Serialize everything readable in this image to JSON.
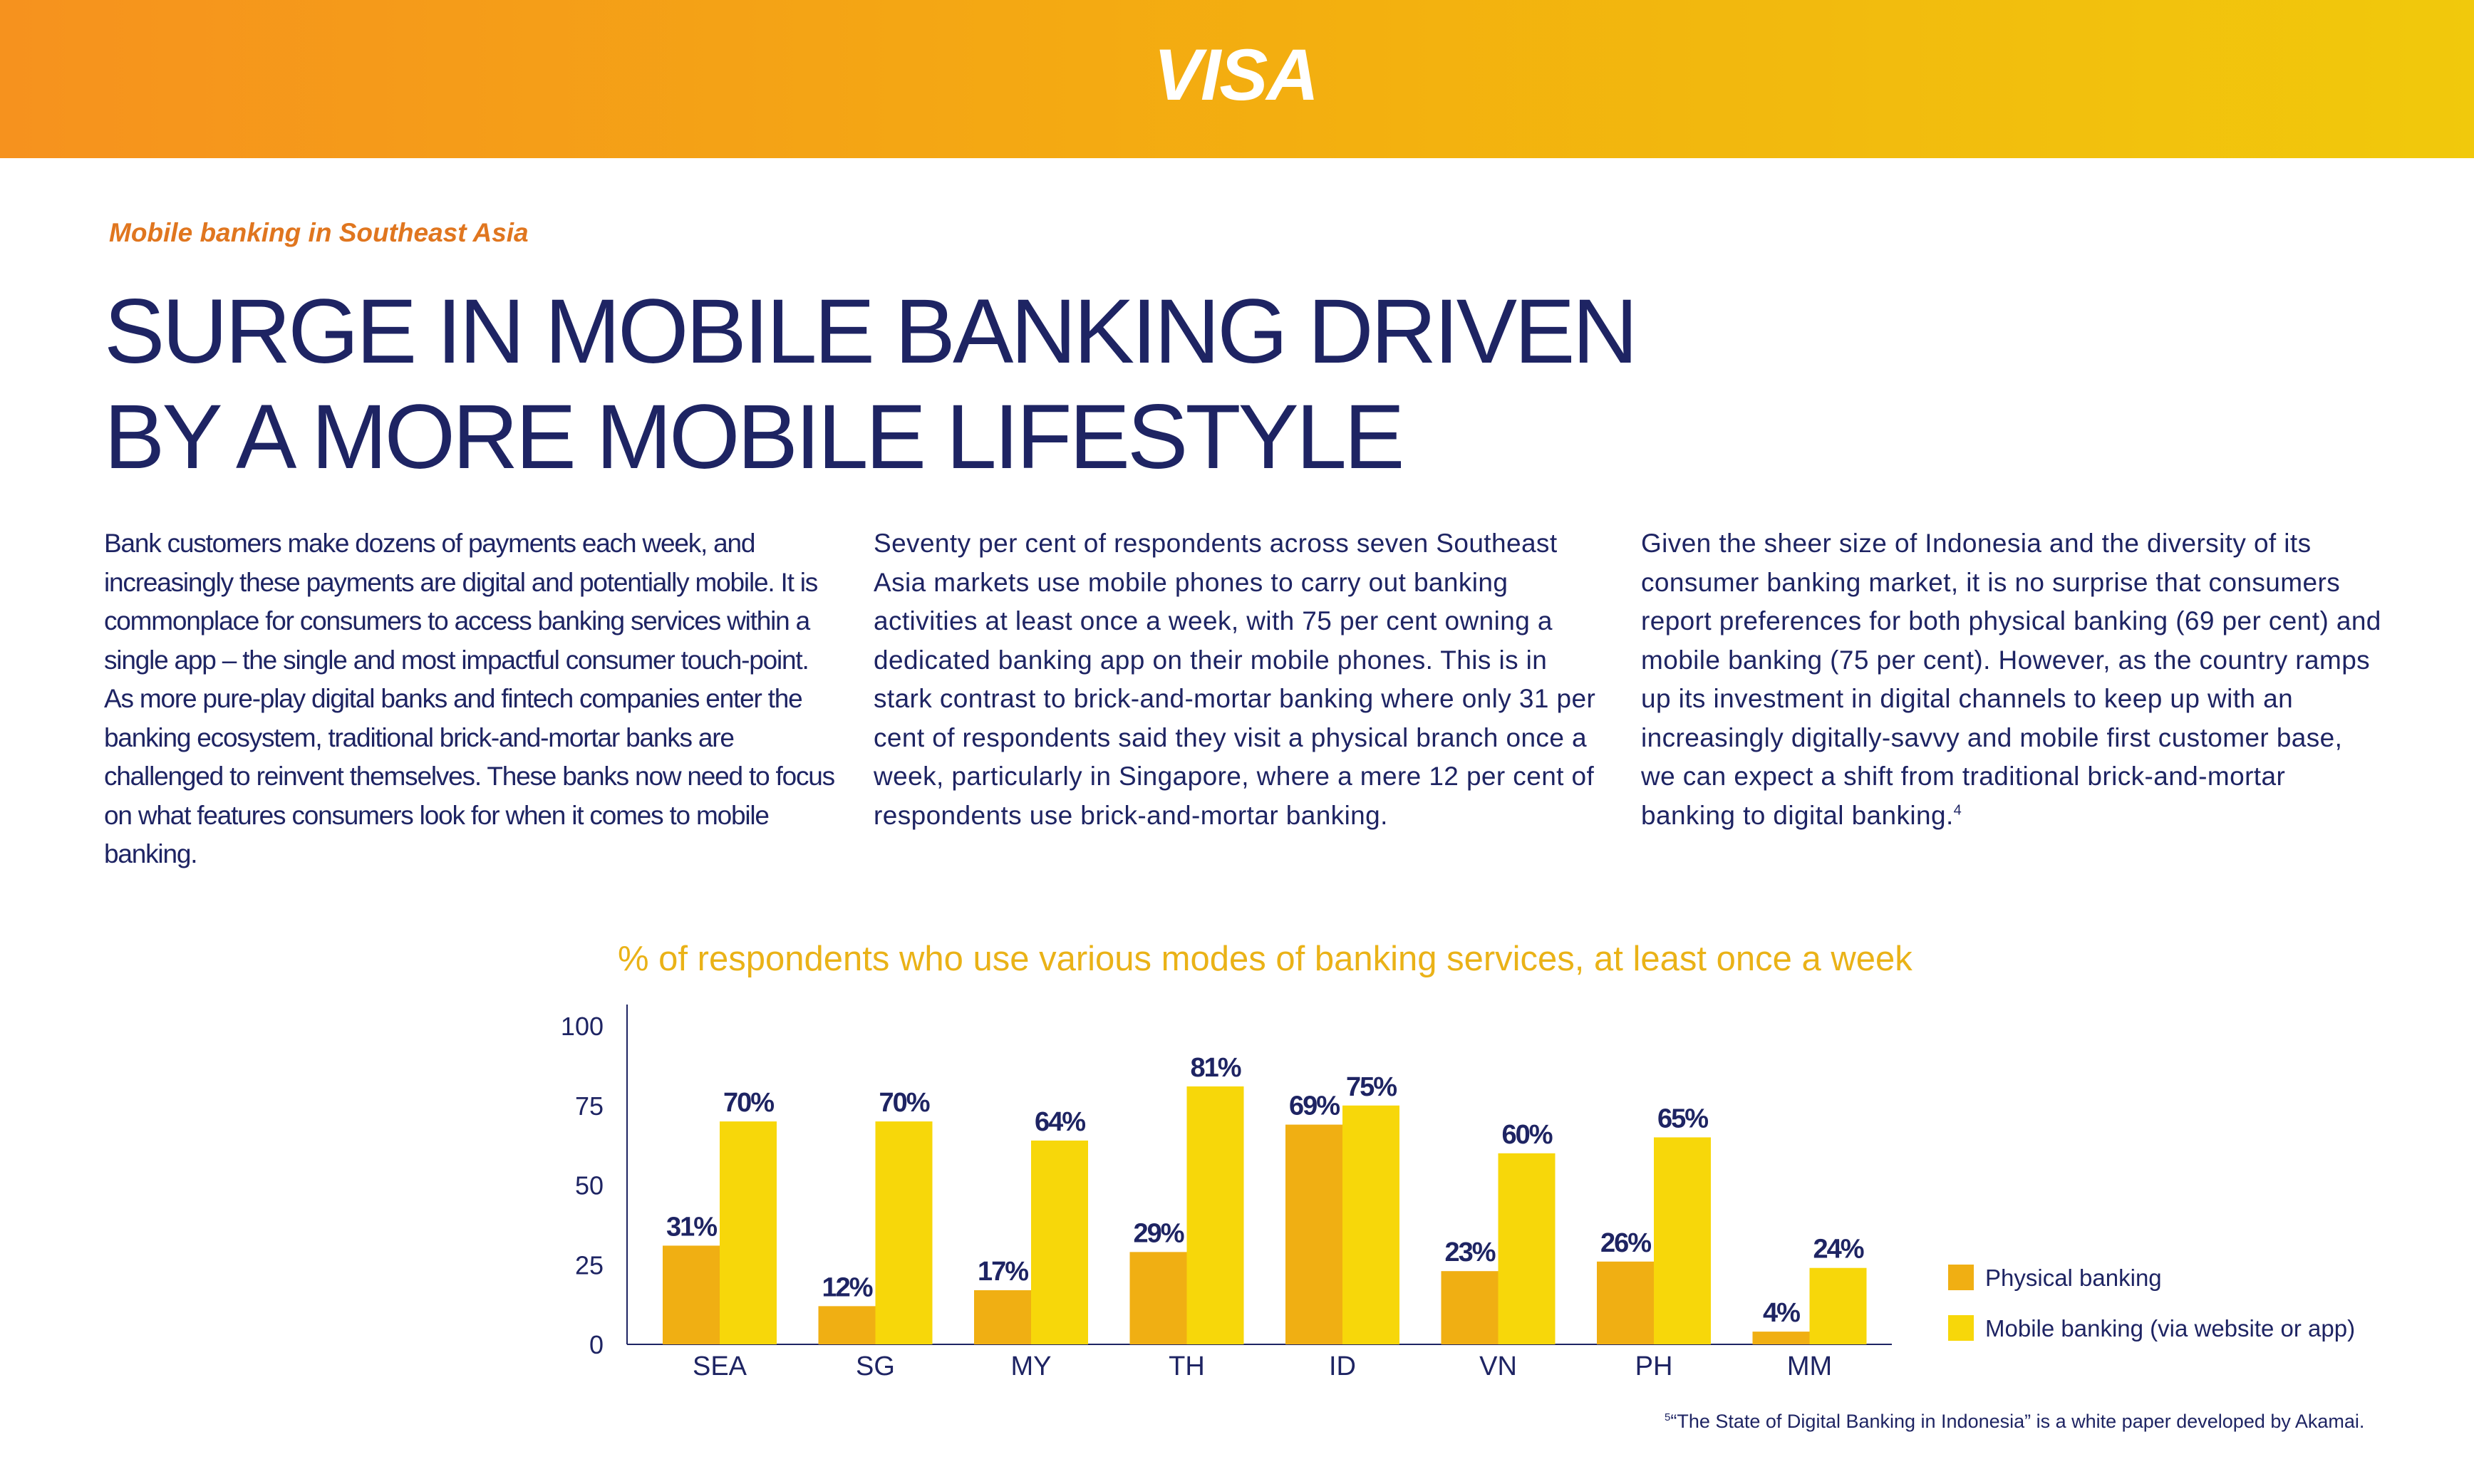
{
  "brand": {
    "logo_text": "VISA"
  },
  "kicker": "Mobile banking in Southeast Asia",
  "headline": {
    "line1": "SURGE IN MOBILE BANKING DRIVEN",
    "line2": "BY A MORE MOBILE LIFESTYLE"
  },
  "columns": [
    "Bank customers make dozens of payments each week, and increasingly these payments are digital and potentially mobile. It is commonplace for consumers to access banking services within a single app – the single and most impactful consumer touch-point. As more pure-play digital banks and fintech companies enter the banking ecosystem, traditional brick-and-mortar banks are challenged to reinvent themselves. These banks now need to focus on what features consumers look for when it comes to mobile banking.",
    "Seventy per cent of respondents across seven Southeast Asia markets use mobile phones to carry out banking activities at least once a week, with 75 per cent owning a dedicated banking app on their mobile phones. This is in stark contrast to brick-and-mortar banking where only 31 per cent of respondents said they visit a physical branch once a week, particularly in Singapore, where a mere 12 per cent of respondents use brick-and-mortar banking.",
    "Given the sheer size of Indonesia and the diversity of its consumer banking market, it is no surprise that consumers report preferences for both physical banking (69 per cent) and mobile banking (75 per cent). However, as the country ramps up its investment in digital channels to keep up with an increasingly digitally-savvy and mobile first customer base, we can expect a shift from traditional brick-and-mortar banking to digital banking."
  ],
  "column3_sup": "4",
  "chart_data": {
    "type": "bar",
    "title": "% of respondents who use various modes of banking services, at least once a week",
    "categories": [
      "SEA",
      "SG",
      "MY",
      "TH",
      "ID",
      "VN",
      "PH",
      "MM"
    ],
    "series": [
      {
        "name": "Physical banking",
        "values": [
          31,
          12,
          17,
          29,
          69,
          23,
          26,
          4
        ],
        "labels": [
          "31%",
          "12%",
          "17%",
          "29%",
          "69%",
          "23%",
          "26%",
          "4%"
        ],
        "color": "#F0AF13"
      },
      {
        "name": "Mobile banking (via website or app)",
        "values": [
          70,
          70,
          64,
          81,
          75,
          60,
          65,
          24
        ],
        "labels": [
          "70%",
          "70%",
          "64%",
          "81%",
          "75%",
          "60%",
          "65%",
          "24%"
        ],
        "color": "#F7D70A"
      }
    ],
    "yticks": [
      "0",
      "25",
      "50",
      "75",
      "100"
    ],
    "ylim": [
      0,
      100
    ],
    "xlabel": "",
    "ylabel": "",
    "legend_position": "right",
    "grid": false
  },
  "footnote": {
    "sup": "5",
    "text": "“The State of Digital Banking in Indonesia” is a white paper developed by Akamai."
  }
}
